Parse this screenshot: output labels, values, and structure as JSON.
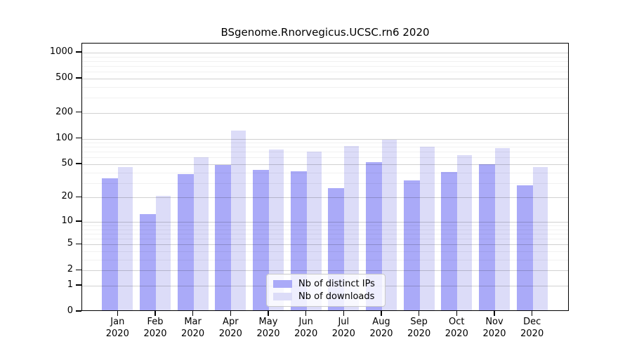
{
  "chart_data": {
    "type": "bar",
    "title": "BSgenome.Rnorvegicus.UCSC.rn6 2020",
    "categories": [
      "Jan",
      "Feb",
      "Mar",
      "Apr",
      "May",
      "Jun",
      "Jul",
      "Aug",
      "Sep",
      "Oct",
      "Nov",
      "Dec"
    ],
    "category_year": "2020",
    "series": [
      {
        "name": "Nb of distinct IPs",
        "color": "#aaaaf8",
        "values": [
          33,
          12,
          37,
          47,
          41,
          40,
          25,
          51,
          31,
          39,
          48,
          27
        ]
      },
      {
        "name": "Nb of downloads",
        "color": "#dcdcf8",
        "values": [
          45,
          20,
          58,
          120,
          72,
          68,
          79,
          93,
          78,
          62,
          75,
          45
        ]
      }
    ],
    "xlabel": "",
    "ylabel": "",
    "yscale": "log1p",
    "ylim": [
      0,
      1280
    ],
    "yticks": [
      0,
      1,
      2,
      5,
      10,
      20,
      50,
      100,
      200,
      500,
      1000
    ],
    "minor_yticks": [
      3,
      4,
      6,
      7,
      8,
      9,
      30,
      40,
      60,
      70,
      80,
      90,
      300,
      400,
      600,
      700,
      800,
      900
    ],
    "grid": true,
    "legend_position": "bottom-center",
    "background_color": "#ffffff",
    "axis_color": "#000000"
  }
}
